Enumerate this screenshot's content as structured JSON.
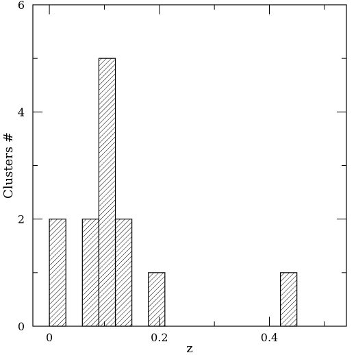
{
  "chart_data": {
    "type": "bar",
    "xlabel": "z",
    "ylabel": "Clusters #",
    "xlim": [
      -0.03,
      0.54
    ],
    "ylim": [
      0,
      6
    ],
    "x_ticks": [
      0,
      0.2,
      0.4
    ],
    "x_tick_labels": [
      "0",
      "0.2",
      "0.4"
    ],
    "x_minor_ticks": [
      0.1,
      0.3,
      0.5
    ],
    "y_ticks": [
      0,
      2,
      4,
      6
    ],
    "y_tick_labels": [
      "0",
      "2",
      "4",
      "6"
    ],
    "fill": "diagonal-hatch",
    "bins": [
      {
        "x0": 0.0,
        "x1": 0.03,
        "value": 2
      },
      {
        "x0": 0.06,
        "x1": 0.09,
        "value": 2
      },
      {
        "x0": 0.09,
        "x1": 0.12,
        "value": 5
      },
      {
        "x0": 0.12,
        "x1": 0.15,
        "value": 2
      },
      {
        "x0": 0.18,
        "x1": 0.21,
        "value": 1
      },
      {
        "x0": 0.42,
        "x1": 0.45,
        "value": 1
      }
    ],
    "grid": false
  },
  "colors": {
    "frame": "#000000",
    "hatch": "#000000",
    "background": "#ffffff"
  }
}
